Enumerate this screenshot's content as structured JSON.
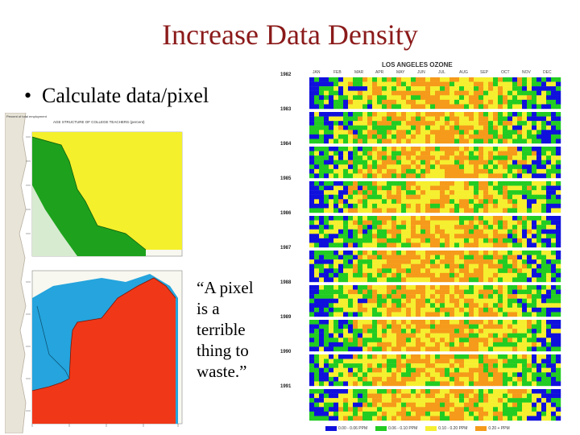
{
  "slide": {
    "title": "Increase Data Density",
    "bullet_text": "Calculate data/pixel",
    "quote_lines": [
      "“A pixel",
      "is a",
      "terrible",
      "thing to",
      "waste.”"
    ]
  },
  "left_figure": {
    "top_panel_title": "AGE STRUCTURE OF COLLEGE TEACHERS (percent)",
    "y_axis_label": "Percent of total employment",
    "colors": {
      "yellow": "#f4f02c",
      "green": "#1ea21e",
      "blue": "#25a4dd",
      "red": "#f03818",
      "panel_bg": "#f8f8f0"
    }
  },
  "ozone_chart": {
    "title": "LOS ANGELES OZONE",
    "months": [
      "JAN",
      "FEB",
      "MAR",
      "APR",
      "MAY",
      "JUN",
      "JUL",
      "AUG",
      "SEP",
      "OCT",
      "NOV",
      "DEC"
    ],
    "years": [
      "1982",
      "1983",
      "1984",
      "1985",
      "1986",
      "1987",
      "1988",
      "1989",
      "1990",
      "1991"
    ],
    "legend": [
      {
        "label": "0.00 - 0.06 PPM",
        "color": "#1010dd"
      },
      {
        "label": "0.06 - 0.10 PPM",
        "color": "#22cc22"
      },
      {
        "label": "0.10 - 0.20 PPM",
        "color": "#f5ef30"
      },
      {
        "label": "0.20 + PPM",
        "color": "#f59a1a"
      }
    ]
  }
}
